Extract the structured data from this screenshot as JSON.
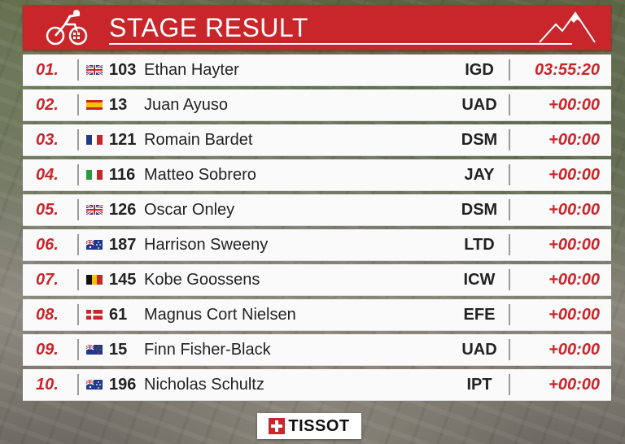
{
  "header": {
    "title": "STAGE RESULT"
  },
  "rows": [
    {
      "pos": "01.",
      "flag": "GB",
      "bib": "103",
      "name": "Ethan Hayter",
      "team": "IGD",
      "time": "03:55:20"
    },
    {
      "pos": "02.",
      "flag": "ES",
      "bib": "13",
      "name": "Juan Ayuso",
      "team": "UAD",
      "time": "+00:00"
    },
    {
      "pos": "03.",
      "flag": "FR",
      "bib": "121",
      "name": "Romain Bardet",
      "team": "DSM",
      "time": "+00:00"
    },
    {
      "pos": "04.",
      "flag": "IT",
      "bib": "116",
      "name": "Matteo Sobrero",
      "team": "JAY",
      "time": "+00:00"
    },
    {
      "pos": "05.",
      "flag": "GB",
      "bib": "126",
      "name": "Oscar Onley",
      "team": "DSM",
      "time": "+00:00"
    },
    {
      "pos": "06.",
      "flag": "AU",
      "bib": "187",
      "name": "Harrison Sweeny",
      "team": "LTD",
      "time": "+00:00"
    },
    {
      "pos": "07.",
      "flag": "BE",
      "bib": "145",
      "name": "Kobe Goossens",
      "team": "ICW",
      "time": "+00:00"
    },
    {
      "pos": "08.",
      "flag": "DK",
      "bib": "61",
      "name": "Magnus Cort Nielsen",
      "team": "EFE",
      "time": "+00:00"
    },
    {
      "pos": "09.",
      "flag": "NZ",
      "bib": "15",
      "name": "Finn Fisher-Black",
      "team": "UAD",
      "time": "+00:00"
    },
    {
      "pos": "10.",
      "flag": "AU",
      "bib": "196",
      "name": "Nicholas Schultz",
      "team": "IPT",
      "time": "+00:00"
    }
  ],
  "sponsor": {
    "label": "TISSOT"
  },
  "colors": {
    "accent": "#c8262b",
    "row_bg": "#fafafa"
  },
  "icons": {
    "logo": "cyclist-logo-icon",
    "mountain": "mountain-icon"
  }
}
